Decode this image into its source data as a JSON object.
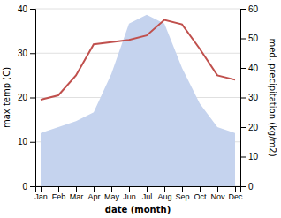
{
  "chart_data": {
    "type": "line",
    "categories": [
      "Jan",
      "Feb",
      "Mar",
      "Apr",
      "May",
      "Jun",
      "Jul",
      "Aug",
      "Sep",
      "Oct",
      "Nov",
      "Dec"
    ],
    "xlabel": "date (month)",
    "ylabel": "max temp (C)",
    "y2label": "med. precipitation (kg/m2)",
    "series": [
      {
        "type": "area",
        "axis": "y2",
        "color": "#c5d3ee",
        "values": [
          18.0,
          20.0,
          22.0,
          25.0,
          38.0,
          55.0,
          58.0,
          55.0,
          40.0,
          28.0,
          20.0,
          18.0
        ]
      },
      {
        "type": "line",
        "color": "#c0504d",
        "values": [
          19.5,
          20.5,
          25.0,
          32.0,
          32.5,
          33.0,
          34.0,
          37.5,
          36.5,
          31.0,
          25.0,
          24.0
        ]
      }
    ],
    "ylim": [
      0,
      40
    ],
    "yticks": [
      0,
      10,
      20,
      30,
      40
    ],
    "y2lim": [
      0,
      60
    ],
    "y2ticks": [
      0,
      10,
      20,
      30,
      40,
      50,
      60
    ],
    "grid": true
  }
}
